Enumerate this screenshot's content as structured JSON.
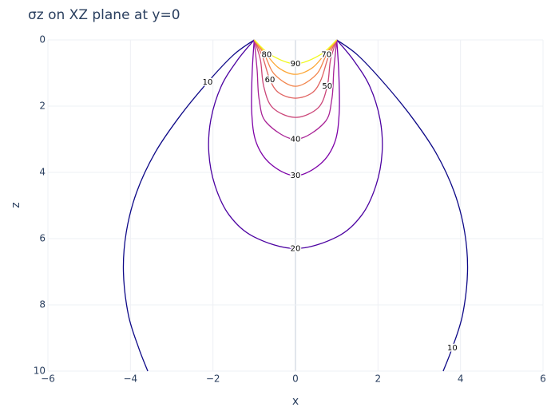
{
  "chart_data": {
    "type": "contour",
    "title": "σz on XZ plane at y=0",
    "x_label": "x",
    "y_label": "z",
    "xlim": [
      -6,
      6
    ],
    "xticks": [
      {
        "value": -6,
        "label": "−6"
      },
      {
        "value": -4,
        "label": "−4"
      },
      {
        "value": -2,
        "label": "−2"
      },
      0,
      2,
      4,
      6
    ],
    "ylim": [
      0,
      10
    ],
    "y_reversed": true,
    "yticks": [
      0,
      2,
      4,
      6,
      8,
      10
    ],
    "grid": true,
    "series": [
      {
        "name": "10",
        "level": 10,
        "color": "#0d0887",
        "x": [
          -1,
          -1.5,
          -2.13,
          -2.8,
          -3.4,
          -3.85,
          -4.1,
          -4.17,
          -4.05,
          -3.8,
          -3.58,
          null,
          1,
          1.5,
          2.13,
          2.8,
          3.4,
          3.85,
          4.1,
          4.17,
          4.05,
          3.8,
          3.58
        ],
        "values": [
          0,
          0.45,
          1.28,
          2.3,
          3.4,
          4.6,
          5.8,
          7.0,
          8.3,
          9.3,
          10,
          null,
          0,
          0.45,
          1.28,
          2.3,
          3.4,
          4.6,
          5.8,
          7.0,
          8.3,
          9.3,
          10
        ]
      },
      {
        "name": "20",
        "level": 20,
        "color": "#4c02a1",
        "x": [
          -1,
          -1.4,
          -1.8,
          -2.05,
          -2.1,
          -1.95,
          -1.6,
          -1,
          0,
          1,
          1.6,
          1.95,
          2.1,
          2.05,
          1.8,
          1.4,
          1
        ],
        "values": [
          0,
          0.6,
          1.4,
          2.4,
          3.4,
          4.4,
          5.3,
          5.95,
          6.3,
          5.95,
          5.3,
          4.4,
          3.4,
          2.4,
          1.4,
          0.6,
          0
        ]
      },
      {
        "name": "30",
        "level": 30,
        "color": "#7e03a8",
        "x": [
          -1,
          -1.05,
          -1.06,
          -0.95,
          -0.6,
          0,
          0.6,
          0.95,
          1.06,
          1.05,
          1
        ],
        "values": [
          0,
          1,
          2.2,
          3.1,
          3.75,
          4.1,
          3.75,
          3.1,
          2.2,
          1,
          0
        ]
      },
      {
        "name": "40",
        "level": 40,
        "color": "#a82296",
        "x": [
          -1,
          -0.93,
          -0.88,
          -0.7,
          0,
          0.7,
          0.88,
          0.93,
          1
        ],
        "values": [
          0,
          0.9,
          1.8,
          2.5,
          3.0,
          2.5,
          1.8,
          0.9,
          0
        ]
      },
      {
        "name": "50",
        "level": 50,
        "color": "#cb4679",
        "x": [
          -1,
          -0.85,
          -0.77,
          -0.55,
          0,
          0.55,
          0.77,
          0.85,
          1
        ],
        "values": [
          0,
          0.6,
          1.4,
          2.05,
          2.34,
          2.05,
          1.4,
          0.6,
          0
        ]
      },
      {
        "name": "60",
        "level": 60,
        "color": "#e16462",
        "x": [
          -1,
          -0.8,
          -0.62,
          -0.4,
          0,
          0.4,
          0.62,
          0.8,
          1
        ],
        "values": [
          0,
          0.5,
          1.2,
          1.6,
          1.76,
          1.6,
          1.2,
          0.5,
          0
        ]
      },
      {
        "name": "70",
        "level": 70,
        "color": "#f2844b",
        "x": [
          -1,
          -0.75,
          -0.5,
          0,
          0.5,
          0.75,
          1
        ],
        "values": [
          0,
          0.45,
          1.05,
          1.4,
          1.05,
          0.45,
          0
        ]
      },
      {
        "name": "80",
        "level": 80,
        "color": "#fca636",
        "x": [
          -1,
          -0.7,
          -0.4,
          0,
          0.4,
          0.7,
          1
        ],
        "values": [
          0,
          0.45,
          0.85,
          1.04,
          0.85,
          0.45,
          0
        ]
      },
      {
        "name": "90",
        "level": 90,
        "color": "#f0f921",
        "x": [
          -1,
          -0.6,
          0,
          0.6,
          1
        ],
        "values": [
          0,
          0.45,
          0.72,
          0.45,
          0
        ]
      }
    ]
  }
}
